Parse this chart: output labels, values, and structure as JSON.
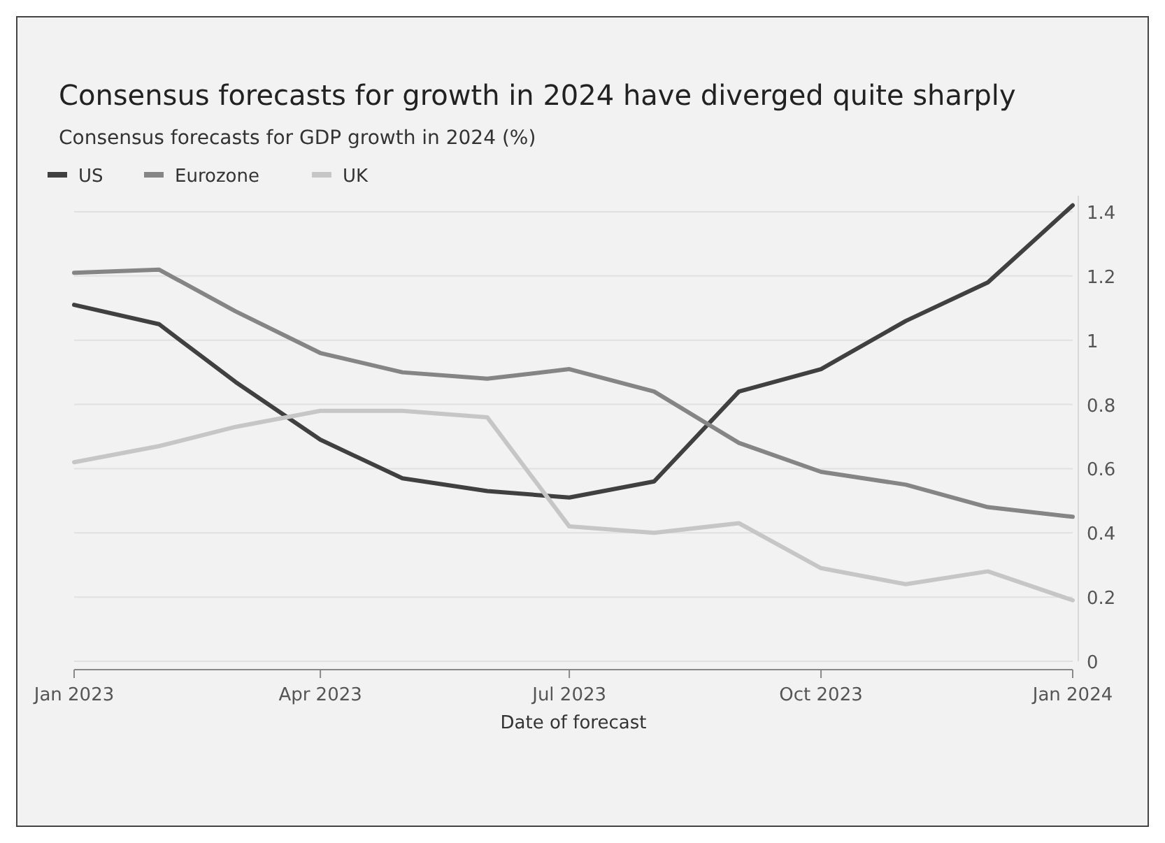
{
  "chart_data": {
    "type": "line",
    "title": "Consensus forecasts for growth in 2024 have diverged quite sharply",
    "subtitle": "Consensus forecasts for GDP growth in 2024 (%)",
    "xlabel": "Date of forecast",
    "x": [
      "2023-01",
      "2023-02",
      "2023-03",
      "2023-04",
      "2023-05",
      "2023-06",
      "2023-07",
      "2023-08",
      "2023-09",
      "2023-10",
      "2023-11",
      "2023-12",
      "2024-01"
    ],
    "series": [
      {
        "name": "US",
        "color": "#404040",
        "values": [
          1.11,
          1.05,
          0.87,
          0.69,
          0.57,
          0.53,
          0.51,
          0.56,
          0.84,
          0.91,
          1.06,
          1.18,
          1.42
        ]
      },
      {
        "name": "Eurozone",
        "color": "#858585",
        "values": [
          1.21,
          1.22,
          1.09,
          0.96,
          0.9,
          0.88,
          0.91,
          0.84,
          0.68,
          0.59,
          0.55,
          0.48,
          0.45
        ]
      },
      {
        "name": "UK",
        "color": "#c6c6c6",
        "values": [
          0.62,
          0.67,
          0.73,
          0.78,
          0.78,
          0.76,
          0.42,
          0.4,
          0.43,
          0.29,
          0.24,
          0.28,
          0.19
        ]
      }
    ],
    "xlim": [
      "2023-01",
      "2024-01"
    ],
    "xticks": [
      {
        "value": "2023-01",
        "label": "Jan 2023"
      },
      {
        "value": "2023-04",
        "label": "Apr 2023"
      },
      {
        "value": "2023-07",
        "label": "Jul 2023"
      },
      {
        "value": "2023-10",
        "label": "Oct 2023"
      },
      {
        "value": "2024-01",
        "label": "Jan 2024"
      }
    ],
    "ylim": [
      0,
      1.45
    ],
    "yticks": [
      0,
      0.2,
      0.4,
      0.6,
      0.8,
      1.0,
      1.2,
      1.4
    ],
    "grid": "y",
    "legend": "top left",
    "line_style": "solid",
    "marker": "none"
  }
}
